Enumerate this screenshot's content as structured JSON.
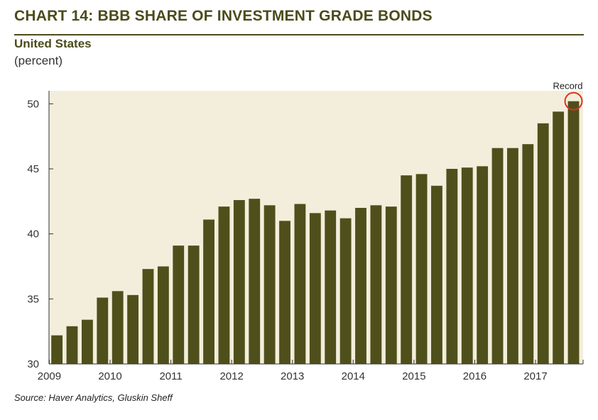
{
  "header": {
    "title": "CHART 14: BBB SHARE OF INVESTMENT GRADE BONDS",
    "subtitle": "United States",
    "unit": "(percent)"
  },
  "footer": {
    "source": "Source: Haver Analytics, Gluskin Sheff"
  },
  "colors": {
    "bar": "#4f4f1c",
    "plot_background": "#f3eedb",
    "axis": "#333333",
    "highlight": "#e0301e"
  },
  "chart_data": {
    "type": "bar",
    "ylim": [
      30,
      51
    ],
    "yticks": [
      30,
      35,
      40,
      45,
      50
    ],
    "xlabels": [
      "2009",
      "2010",
      "2011",
      "2012",
      "2013",
      "2014",
      "2015",
      "2016",
      "2017"
    ],
    "categories": [
      "2009 Q1",
      "2009 Q2",
      "2009 Q3",
      "2009 Q4",
      "2010 Q1",
      "2010 Q2",
      "2010 Q3",
      "2010 Q4",
      "2011 Q1",
      "2011 Q2",
      "2011 Q3",
      "2011 Q4",
      "2012 Q1",
      "2012 Q2",
      "2012 Q3",
      "2012 Q4",
      "2013 Q1",
      "2013 Q2",
      "2013 Q3",
      "2013 Q4",
      "2014 Q1",
      "2014 Q2",
      "2014 Q3",
      "2014 Q4",
      "2015 Q1",
      "2015 Q2",
      "2015 Q3",
      "2015 Q4",
      "2016 Q1",
      "2016 Q2",
      "2016 Q3",
      "2016 Q4",
      "2017 Q1",
      "2017 Q2",
      "2017 Q3"
    ],
    "values": [
      32.2,
      32.9,
      33.4,
      35.1,
      35.6,
      35.3,
      37.3,
      37.5,
      39.1,
      39.1,
      41.1,
      42.1,
      42.6,
      42.7,
      42.2,
      41.0,
      42.3,
      41.6,
      41.8,
      41.2,
      42.0,
      42.2,
      42.1,
      44.5,
      44.6,
      43.7,
      45.0,
      45.1,
      45.2,
      46.6,
      46.6,
      46.9,
      48.5,
      49.4,
      50.2
    ],
    "annotation": {
      "text": "Record",
      "index": 34
    },
    "grid": false
  }
}
